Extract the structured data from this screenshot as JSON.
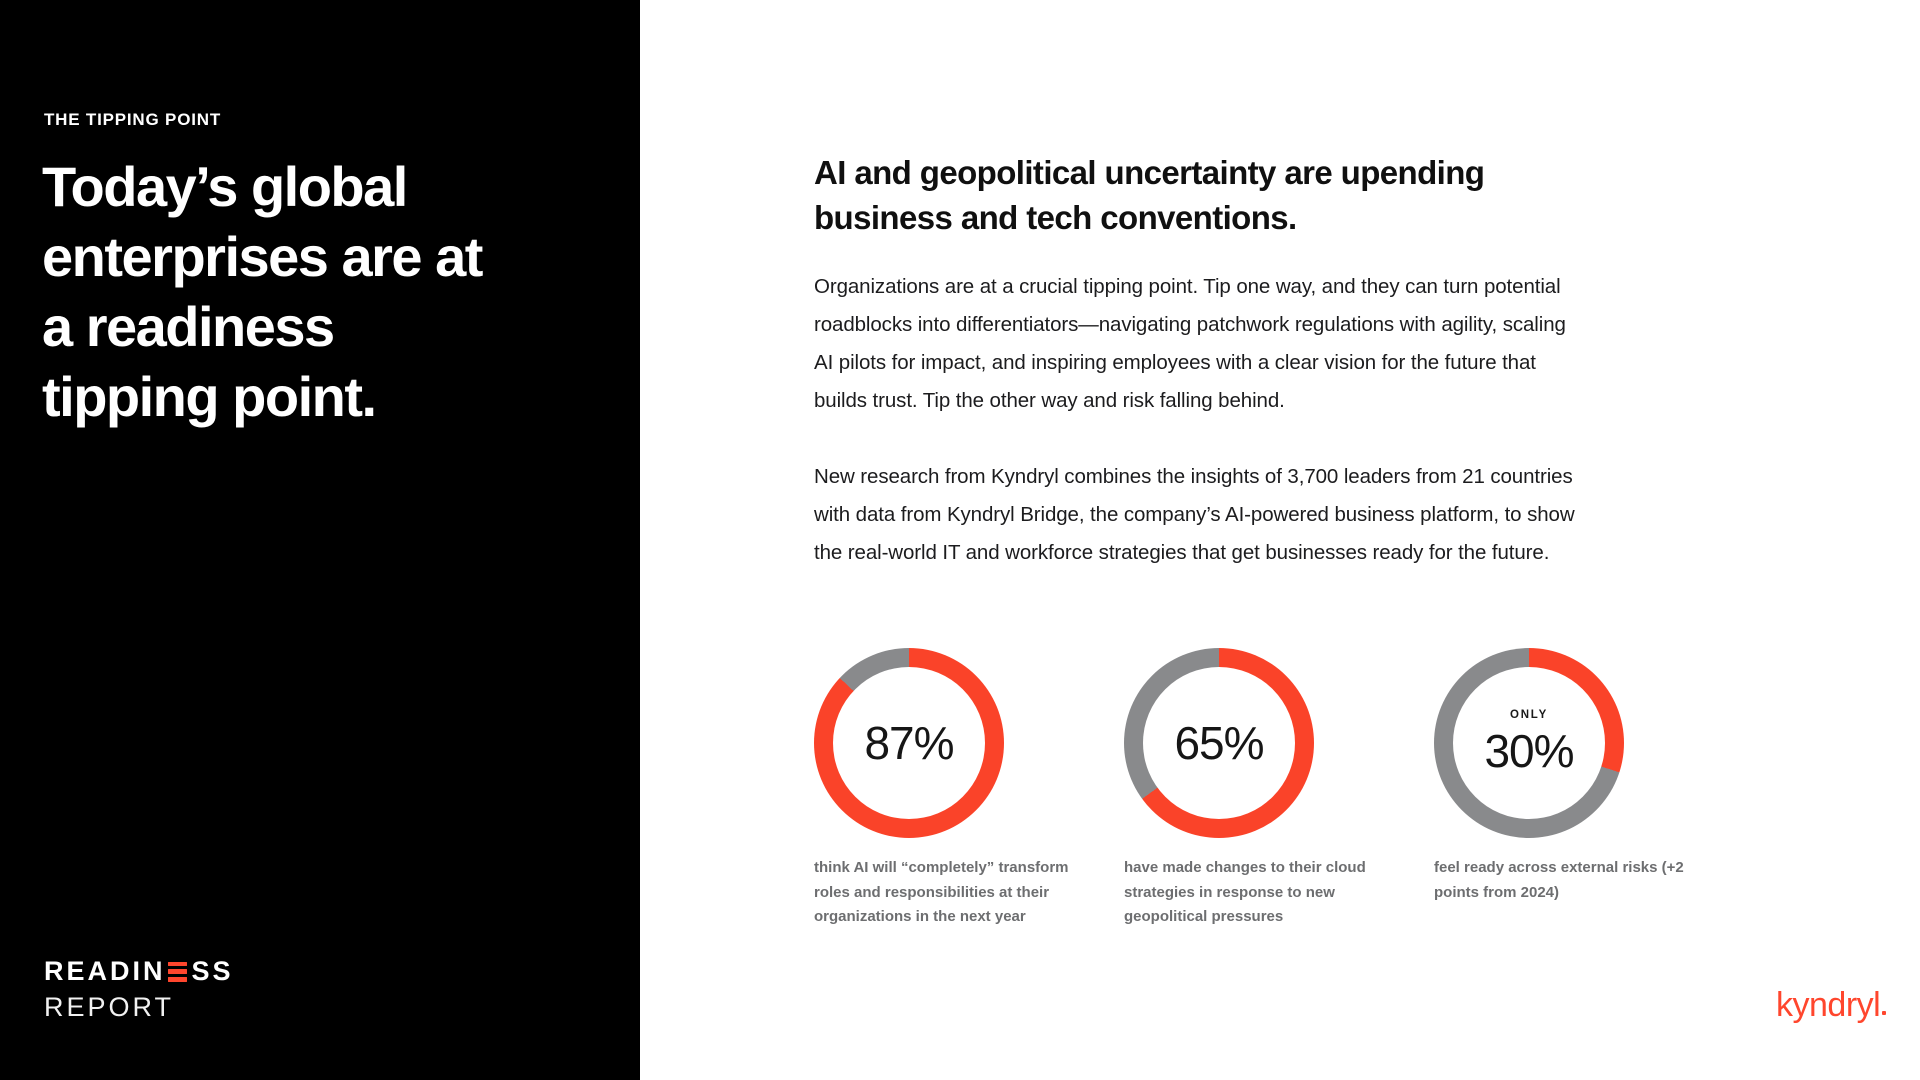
{
  "colors": {
    "accent_red": "#FA4329",
    "kyndryl_red": "#FF462D",
    "ring_gray": "#898A8C",
    "caption_gray": "#6D6E70",
    "panel_black": "#000000"
  },
  "left_panel": {
    "eyebrow": "THE TIPPING POINT",
    "headline_lines": [
      "Today’s global",
      "enterprises are at",
      "a readiness",
      "tipping point."
    ],
    "logo": {
      "line1_pre": "READIN",
      "line1_post": "SS",
      "line2": "REPORT",
      "e_icon": "three-red-bars"
    }
  },
  "main": {
    "heading": "AI and geopolitical uncertainty are upending business and tech conventions.",
    "paragraphs": [
      {
        "lines": [
          "Organizations are at a crucial tipping point. Tip one way, and they can turn potential",
          "roadblocks into differentiators—navigating patchwork regulations with agility, scaling",
          "AI pilots for impact, and inspiring employees with a clear vision for the future that",
          "builds trust. Tip the other way and risk falling behind."
        ]
      },
      {
        "lines": [
          "New research from Kyndryl combines the insights of 3,700 leaders from 21 countries",
          "with data from Kyndryl Bridge, the company’s AI-powered business platform, to show",
          "the real-world IT and workforce strategies that get businesses ready for the future."
        ]
      }
    ]
  },
  "stats": [
    {
      "value": 87,
      "display": "87%",
      "prefix": "",
      "caption_lines": [
        "think AI will “completely” transform",
        "roles and responsibilities at their",
        "organizations in the next year"
      ]
    },
    {
      "value": 65,
      "display": "65%",
      "prefix": "",
      "caption_lines": [
        "have made changes to their cloud",
        "strategies in response to new",
        "geopolitical pressures"
      ]
    },
    {
      "value": 30,
      "display": "30%",
      "prefix": "ONLY",
      "caption_lines": [
        "feel ready across external risks (+2",
        "points from 2024)"
      ]
    }
  ],
  "footer": {
    "brand": "kyndryl"
  },
  "chart_data": [
    {
      "type": "pie",
      "variant": "donut",
      "title": "think AI will “completely” transform roles and responsibilities at their organizations in the next year",
      "values": [
        87,
        13
      ],
      "labels": [
        "87%",
        "remainder"
      ],
      "colors": [
        "#FA4329",
        "#898A8C"
      ],
      "start_angle_deg": 0,
      "direction": "clockwise"
    },
    {
      "type": "pie",
      "variant": "donut",
      "title": "have made changes to their cloud strategies in response to new geopolitical pressures",
      "values": [
        65,
        35
      ],
      "labels": [
        "65%",
        "remainder"
      ],
      "colors": [
        "#FA4329",
        "#898A8C"
      ],
      "start_angle_deg": 0,
      "direction": "clockwise"
    },
    {
      "type": "pie",
      "variant": "donut",
      "title": "ONLY 30% feel ready across external risks (+2 points from 2024)",
      "values": [
        30,
        70
      ],
      "labels": [
        "30%",
        "remainder"
      ],
      "colors": [
        "#FA4329",
        "#898A8C"
      ],
      "start_angle_deg": 0,
      "direction": "clockwise"
    }
  ]
}
